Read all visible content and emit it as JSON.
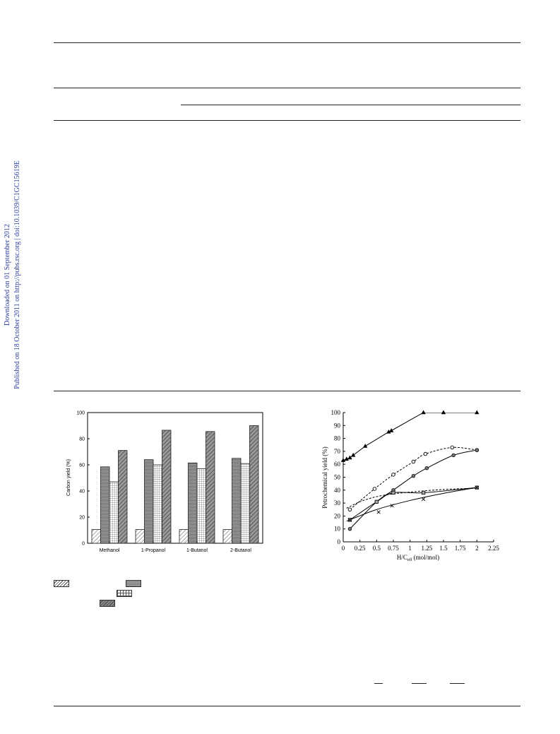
{
  "sidebar": {
    "line1": "Downloaded on 01 September 2012",
    "line2": "Published on 18 October 2011 on http://pubs.rsc.org | doi:10.1039/C1GC15619E"
  },
  "figure1": {
    "chart_data": {
      "type": "bar",
      "ylabel": "Carbon yield (%)",
      "ylim": [
        0,
        100
      ],
      "yticks": [
        0,
        20,
        40,
        60,
        80,
        100
      ],
      "categories": [
        "Methanol",
        "1-Propanol",
        "1-Butanol",
        "2-Butanol"
      ],
      "series": [
        {
          "pattern": "hatched-light",
          "values": [
            10.5,
            10.5,
            10.5,
            10.5
          ]
        },
        {
          "pattern": "horizontal-lines",
          "values": [
            58.5,
            64,
            61.5,
            65
          ]
        },
        {
          "pattern": "grid",
          "values": [
            47,
            60,
            57,
            61
          ]
        },
        {
          "pattern": "hatched-dark",
          "values": [
            71,
            86.5,
            85.5,
            90
          ]
        }
      ]
    }
  },
  "figure2": {
    "chart_data": {
      "type": "line",
      "ylabel": "Petrochemical yield (%)",
      "xlabel_main": "H/C",
      "xlabel_sub": "eff",
      "xlabel_unit": " (mol/mol)",
      "xlim": [
        0,
        2.25
      ],
      "ylim": [
        0,
        100
      ],
      "xticks": [
        0,
        0.25,
        0.5,
        0.75,
        1,
        1.25,
        1.5,
        1.75,
        2,
        2.25
      ],
      "xtick_labels": [
        "0",
        "0.25",
        "0.5",
        "0.75",
        "1",
        "1.25",
        "1.5",
        "1.75",
        "2",
        "2.25"
      ],
      "yticks": [
        0,
        10,
        20,
        30,
        40,
        50,
        60,
        70,
        80,
        90,
        100
      ],
      "series": [
        {
          "marker": "triangle",
          "line": "solid",
          "points": [
            [
              0,
              63
            ],
            [
              0.05,
              64
            ],
            [
              0.1,
              65
            ],
            [
              0.15,
              67
            ],
            [
              0.33,
              74
            ],
            [
              0.68,
              85
            ],
            [
              0.72,
              86
            ],
            [
              1.2,
              100
            ],
            [
              1.5,
              100
            ],
            [
              2,
              100
            ]
          ]
        },
        {
          "marker": "circle-open",
          "line": "dashed",
          "points": [
            [
              0.1,
              25
            ],
            [
              0.47,
              41
            ],
            [
              0.75,
              52
            ],
            [
              1.05,
              62
            ],
            [
              1.23,
              68
            ],
            [
              1.63,
              73
            ],
            [
              2,
              71
            ]
          ]
        },
        {
          "marker": "circle-filled",
          "line": "solid",
          "points": [
            [
              0.1,
              10
            ],
            [
              0.5,
              31
            ],
            [
              0.75,
              40
            ],
            [
              1.05,
              51
            ],
            [
              1.25,
              57
            ],
            [
              1.65,
              67
            ],
            [
              2,
              71
            ]
          ]
        },
        {
          "marker": "square",
          "line": "solid",
          "points": [
            [
              0.1,
              17
            ],
            [
              0.5,
              31
            ],
            [
              0.75,
              38
            ],
            [
              1.2,
              38
            ],
            [
              2,
              42
            ]
          ]
        },
        {
          "marker": "x",
          "line": "none",
          "points": [
            [
              0.1,
              17
            ],
            [
              0.53,
              23
            ],
            [
              0.73,
              28
            ],
            [
              1.2,
              33
            ],
            [
              2,
              42
            ]
          ]
        }
      ],
      "curves": [
        {
          "line": "dashed",
          "points": [
            [
              0.05,
              26
            ],
            [
              0.3,
              32
            ],
            [
              0.6,
              36
            ],
            [
              1.0,
              38.5
            ],
            [
              1.5,
              40.5
            ],
            [
              2,
              41.5
            ]
          ]
        },
        {
          "line": "solid",
          "points": [
            [
              0.05,
              16
            ],
            [
              0.5,
              25
            ],
            [
              1.0,
              32
            ],
            [
              1.5,
              37.5
            ],
            [
              2,
              42
            ]
          ]
        }
      ]
    }
  }
}
